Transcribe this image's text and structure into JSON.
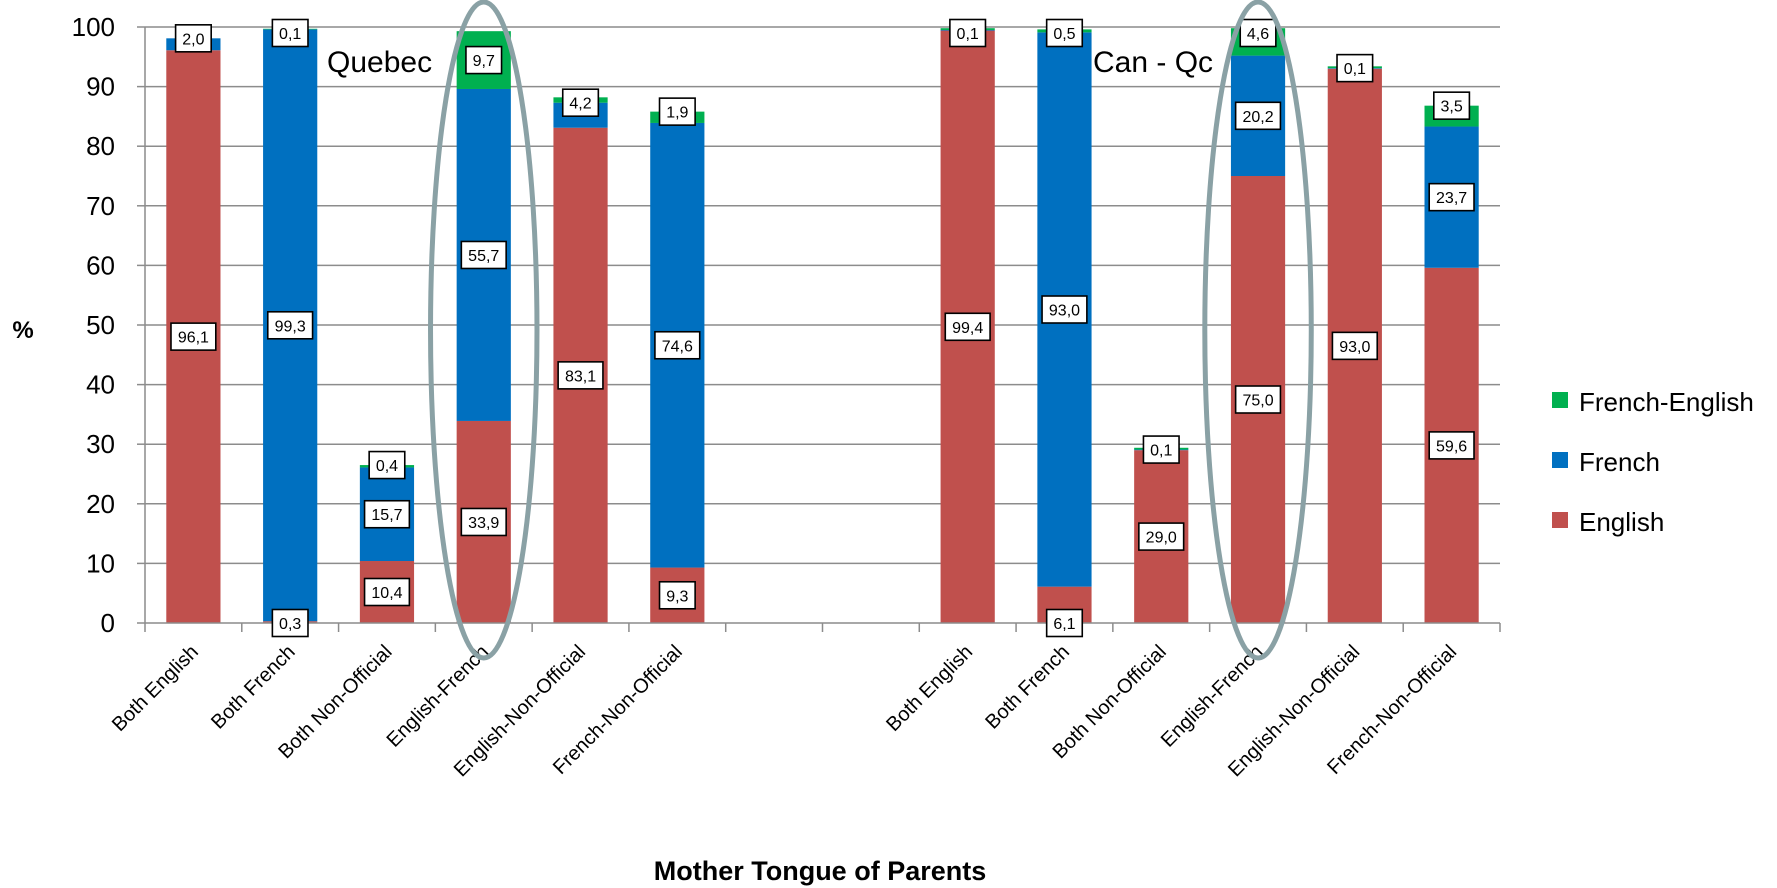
{
  "chart_data": {
    "type": "bar",
    "stacked": true,
    "ylim": [
      0,
      100
    ],
    "yticks": [
      0,
      10,
      20,
      30,
      40,
      50,
      60,
      70,
      80,
      90,
      100
    ],
    "ylabel": "%",
    "xlabel": "Mother Tongue of Parents",
    "grid": true,
    "legend_position": "right",
    "series": [
      {
        "name": "English",
        "color": "#C0504D"
      },
      {
        "name": "French",
        "color": "#0070C0"
      },
      {
        "name": "French-English",
        "color": "#00B050"
      }
    ],
    "groups": [
      {
        "name": "Quebec",
        "bars": [
          {
            "category": "Both English",
            "English": 96.1,
            "French": 2.0,
            "French-English": 0.0,
            "labels": {
              "English": "96,1",
              "French": "2,0"
            }
          },
          {
            "category": "Both French",
            "English": 0.3,
            "French": 99.3,
            "French-English": 0.1,
            "labels": {
              "English": "0,3",
              "French": "99,3",
              "French-English": "0,1"
            }
          },
          {
            "category": "Both Non-Official",
            "English": 10.4,
            "French": 15.7,
            "French-English": 0.4,
            "labels": {
              "English": "10,4",
              "French": "15,7",
              "French-English": "0,4"
            }
          },
          {
            "category": "English-French",
            "English": 33.9,
            "French": 55.7,
            "French-English": 9.7,
            "labels": {
              "English": "33,9",
              "French": "55,7",
              "French-English": "9,7"
            }
          },
          {
            "category": "English-Non-Official",
            "English": 83.1,
            "French": 4.2,
            "French-English": 0.9,
            "labels": {
              "English": "83,1",
              "French": "4,2"
            }
          },
          {
            "category": "French-Non-Official",
            "English": 9.3,
            "French": 74.6,
            "French-English": 1.9,
            "labels": {
              "English": "9,3",
              "French": "74,6",
              "French-English": "1,9"
            }
          }
        ]
      },
      {
        "name": "Can - Qc",
        "bars": [
          {
            "category": "Both English",
            "English": 99.4,
            "French": 0.1,
            "French-English": 0.3,
            "labels": {
              "English": "99,4",
              "French": "0,1"
            }
          },
          {
            "category": "Both French",
            "English": 6.1,
            "French": 93.0,
            "French-English": 0.5,
            "labels": {
              "English": "6,1",
              "French": "93,0",
              "French-English": "0,5"
            }
          },
          {
            "category": "Both Non-Official",
            "English": 29.0,
            "French": 0.1,
            "French-English": 0.3,
            "labels": {
              "English": "29,0",
              "French": "0,1"
            }
          },
          {
            "category": "English-French",
            "English": 75.0,
            "French": 20.2,
            "French-English": 4.6,
            "labels": {
              "English": "75,0",
              "French": "20,2",
              "French-English": "4,6"
            }
          },
          {
            "category": "English-Non-Official",
            "English": 93.0,
            "French": 0.1,
            "French-English": 0.3,
            "labels": {
              "English": "93,0",
              "French": "0,1"
            }
          },
          {
            "category": "French-Non-Official",
            "English": 59.6,
            "French": 23.7,
            "French-English": 3.5,
            "labels": {
              "English": "59,6",
              "French": "23,7",
              "French-English": "3,5"
            }
          }
        ]
      }
    ],
    "highlight_category": "English-French"
  }
}
